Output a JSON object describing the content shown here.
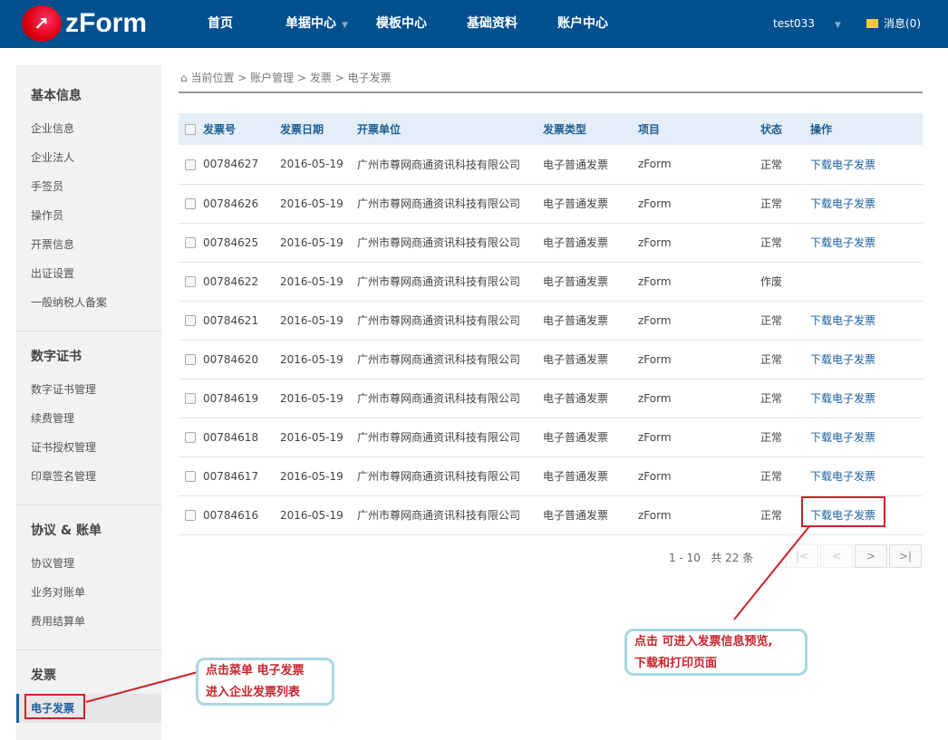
{
  "header": {
    "logo": "zForm",
    "nav": [
      "首页",
      "单据中心",
      "模板中心",
      "基础资料",
      "账户中心"
    ],
    "user": "test033",
    "messages": "消息(0)"
  },
  "sidebar": {
    "sections": [
      {
        "title": "基本信息",
        "items": [
          "企业信息",
          "企业法人",
          "手签员",
          "操作员",
          "开票信息",
          "出证设置",
          "一般纳税人备案"
        ]
      },
      {
        "title": "数字证书",
        "items": [
          "数字证书管理",
          "续费管理",
          "证书授权管理",
          "印章签名管理"
        ]
      },
      {
        "title": "协议 & 账单",
        "items": [
          "协议管理",
          "业务对账单",
          "费用结算单"
        ]
      },
      {
        "title": "发票",
        "items": [
          "电子发票"
        ]
      }
    ],
    "active": "电子发票"
  },
  "breadcrumb": [
    "当前位置",
    "账户管理",
    "发票",
    "电子发票"
  ],
  "table": {
    "headers": [
      "发票号",
      "发票日期",
      "开票单位",
      "发票类型",
      "项目",
      "状态",
      "操作"
    ],
    "rows": [
      [
        "00784627",
        "2016-05-19",
        "广州市尊网商通资讯科技有限公司",
        "电子普通发票",
        "zForm",
        "正常",
        "下载电子发票"
      ],
      [
        "00784626",
        "2016-05-19",
        "广州市尊网商通资讯科技有限公司",
        "电子普通发票",
        "zForm",
        "正常",
        "下载电子发票"
      ],
      [
        "00784625",
        "2016-05-19",
        "广州市尊网商通资讯科技有限公司",
        "电子普通发票",
        "zForm",
        "正常",
        "下载电子发票"
      ],
      [
        "00784622",
        "2016-05-19",
        "广州市尊网商通资讯科技有限公司",
        "电子普通发票",
        "zForm",
        "作废",
        ""
      ],
      [
        "00784621",
        "2016-05-19",
        "广州市尊网商通资讯科技有限公司",
        "电子普通发票",
        "zForm",
        "正常",
        "下载电子发票"
      ],
      [
        "00784620",
        "2016-05-19",
        "广州市尊网商通资讯科技有限公司",
        "电子普通发票",
        "zForm",
        "正常",
        "下载电子发票"
      ],
      [
        "00784619",
        "2016-05-19",
        "广州市尊网商通资讯科技有限公司",
        "电子普通发票",
        "zForm",
        "正常",
        "下载电子发票"
      ],
      [
        "00784618",
        "2016-05-19",
        "广州市尊网商通资讯科技有限公司",
        "电子普通发票",
        "zForm",
        "正常",
        "下载电子发票"
      ],
      [
        "00784617",
        "2016-05-19",
        "广州市尊网商通资讯科技有限公司",
        "电子普通发票",
        "zForm",
        "正常",
        "下载电子发票"
      ],
      [
        "00784616",
        "2016-05-19",
        "广州市尊网商通资讯科技有限公司",
        "电子普通发票",
        "zForm",
        "正常",
        "下载电子发票"
      ]
    ]
  },
  "pagination": {
    "range": "1 - 10",
    "total": "共 22 条",
    "buttons": [
      "|<",
      "<",
      ">",
      ">|"
    ]
  },
  "annotations": {
    "left": [
      "点击菜单 电子发票",
      "进入企业发票列表"
    ],
    "right": [
      "点击 可进入发票信息预览,",
      "下载和打印页面"
    ]
  }
}
